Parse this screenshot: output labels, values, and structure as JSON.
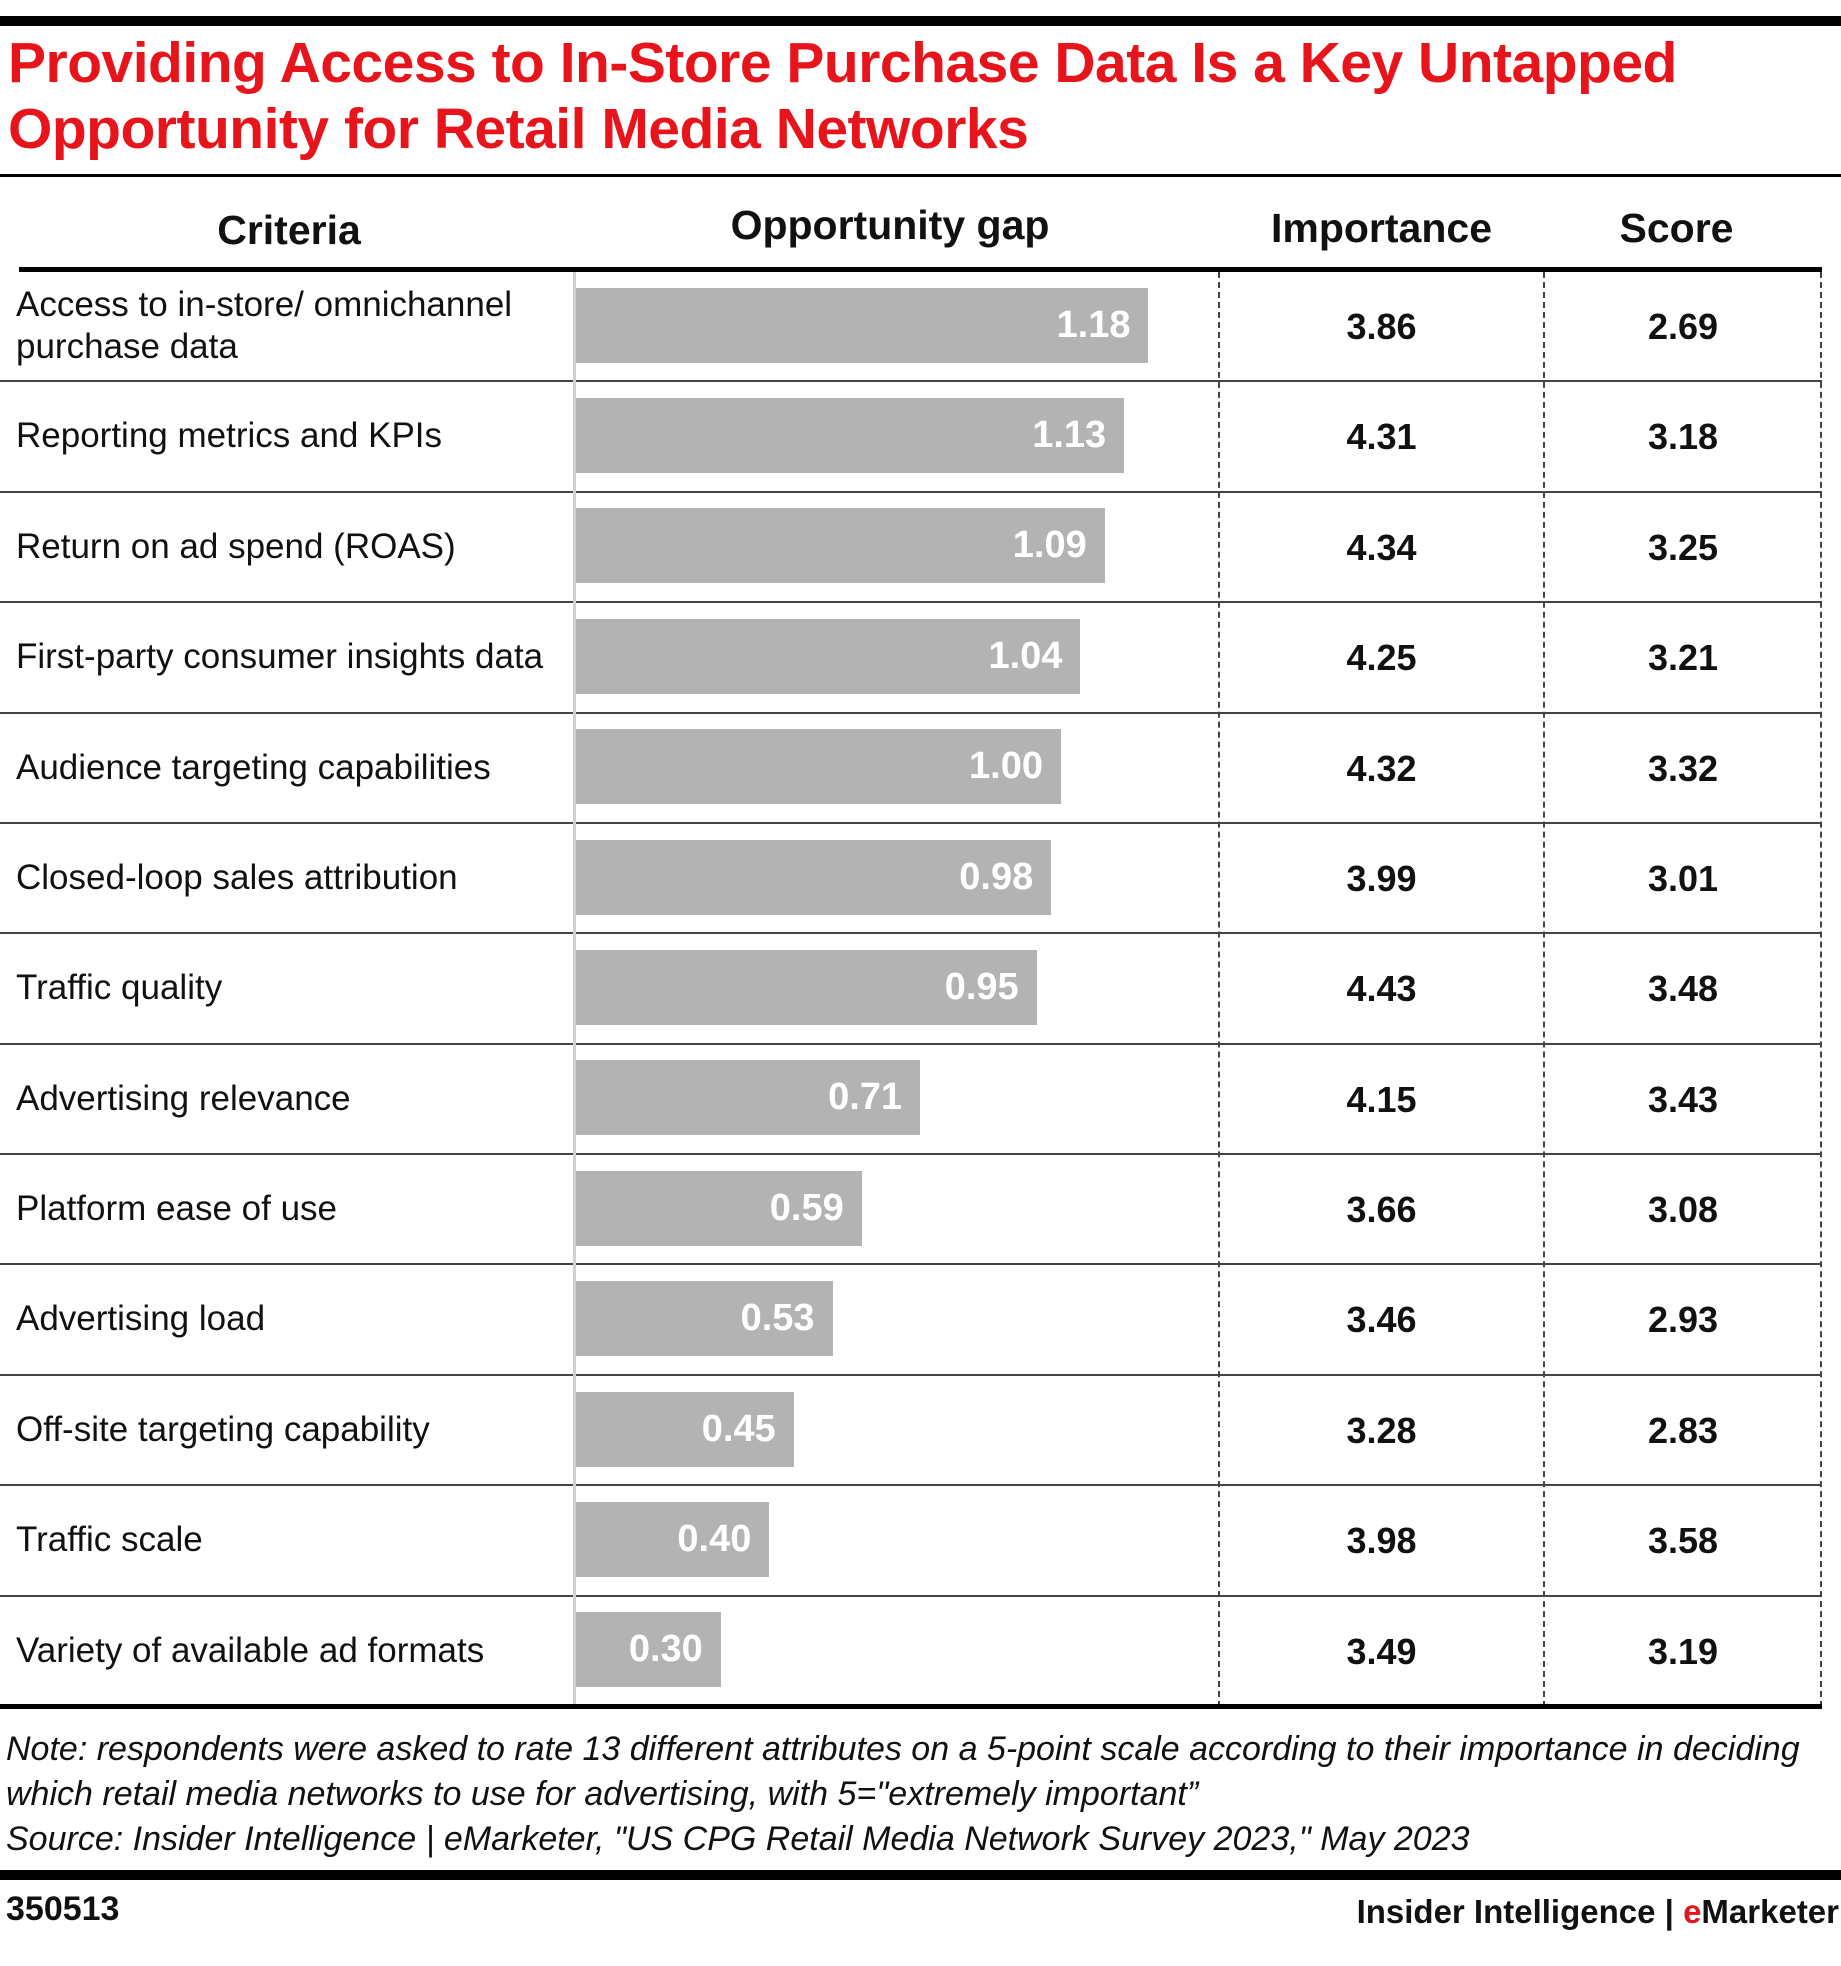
{
  "title": "Providing Access to In-Store Purchase Data Is a Key Untapped Opportunity for Retail Media Networks",
  "chart_data": {
    "type": "table",
    "title": "Providing Access to In-Store Purchase Data Is a Key Untapped Opportunity for Retail Media Networks",
    "columns": [
      "Criteria",
      "Opportunity gap",
      "Importance",
      "Score"
    ],
    "bar_color": "#b3b3b3",
    "title_color": "#e8141c",
    "rows": [
      {
        "criteria": "Access to in-store/ omnichannel purchase data",
        "gap": "1.18",
        "importance": "3.86",
        "score": "2.69"
      },
      {
        "criteria": "Reporting metrics and KPIs",
        "gap": "1.13",
        "importance": "4.31",
        "score": "3.18"
      },
      {
        "criteria": "Return on ad spend (ROAS)",
        "gap": "1.09",
        "importance": "4.34",
        "score": "3.25"
      },
      {
        "criteria": "First-party consumer insights data",
        "gap": "1.04",
        "importance": "4.25",
        "score": "3.21"
      },
      {
        "criteria": "Audience targeting capabilities",
        "gap": "1.00",
        "importance": "4.32",
        "score": "3.32"
      },
      {
        "criteria": "Closed-loop sales attribution",
        "gap": "0.98",
        "importance": "3.99",
        "score": "3.01"
      },
      {
        "criteria": "Traffic quality",
        "gap": "0.95",
        "importance": "4.43",
        "score": "3.48"
      },
      {
        "criteria": "Advertising relevance",
        "gap": "0.71",
        "importance": "4.15",
        "score": "3.43"
      },
      {
        "criteria": "Platform ease of use",
        "gap": "0.59",
        "importance": "3.66",
        "score": "3.08"
      },
      {
        "criteria": "Advertising load",
        "gap": "0.53",
        "importance": "3.46",
        "score": "2.93"
      },
      {
        "criteria": "Off-site targeting capability",
        "gap": "0.45",
        "importance": "3.28",
        "score": "2.83"
      },
      {
        "criteria": "Traffic scale",
        "gap": "0.40",
        "importance": "3.98",
        "score": "3.58"
      },
      {
        "criteria": "Variety of available ad formats",
        "gap": "0.30",
        "importance": "3.49",
        "score": "3.19"
      }
    ]
  },
  "notes": {
    "note": "Note: respondents were asked to rate 13 different attributes on a 5-point scale according to their importance in deciding which retail media networks to use for advertising, with 5=\"extremely important”",
    "source": "Source: Insider Intelligence | eMarketer, \"US CPG Retail Media Network Survey 2023,\" May 2023"
  },
  "footer": {
    "chart_id": "350513",
    "brand_prefix": "Insider Intelligence | ",
    "brand_e": "e",
    "brand_rest": "Marketer"
  }
}
